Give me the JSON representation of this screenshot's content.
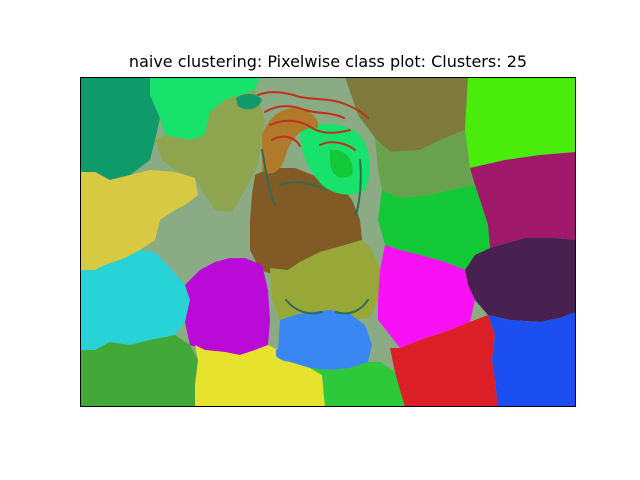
{
  "chart_data": {
    "type": "heatmap",
    "title": "naive clustering: Pixelwise class plot: Clusters: 25",
    "xlabel": "",
    "ylabel": "",
    "num_clusters": 25,
    "axis_ticks": "off",
    "grid": false,
    "legend": "none",
    "regions": [
      {
        "cluster": 1,
        "color": "#0f9a6c",
        "location": "top-left"
      },
      {
        "cluster": 2,
        "color": "#17e26b",
        "location": "top-center-left"
      },
      {
        "cluster": 3,
        "color": "#8fa44f",
        "location": "top-center"
      },
      {
        "cluster": 4,
        "color": "#7e7a3e",
        "location": "top-center-right"
      },
      {
        "cluster": 5,
        "color": "#49ec0b",
        "location": "top-right"
      },
      {
        "cluster": 6,
        "color": "#6aa14f",
        "location": "upper-center-right"
      },
      {
        "cluster": 7,
        "color": "#a0186a",
        "location": "right"
      },
      {
        "cluster": 8,
        "color": "#d8c942",
        "location": "left"
      },
      {
        "cluster": 9,
        "color": "#8aab83",
        "location": "center-left"
      },
      {
        "cluster": 10,
        "color": "#815a25",
        "location": "center"
      },
      {
        "cluster": 11,
        "color": "#13c837",
        "location": "center-right"
      },
      {
        "cluster": 12,
        "color": "#482150",
        "location": "lower-right"
      },
      {
        "cluster": 13,
        "color": "#27d3d6",
        "location": "lower-left"
      },
      {
        "cluster": 14,
        "color": "#b90ad7",
        "location": "lower-center-left"
      },
      {
        "cluster": 15,
        "color": "#98a838",
        "location": "lower-center"
      },
      {
        "cluster": 16,
        "color": "#f711f4",
        "location": "lower-center-right"
      },
      {
        "cluster": 17,
        "color": "#3a86f2",
        "location": "bottom-center"
      },
      {
        "cluster": 18,
        "color": "#43a83a",
        "location": "bottom-left"
      },
      {
        "cluster": 19,
        "color": "#e7e22e",
        "location": "bottom-center-left"
      },
      {
        "cluster": 20,
        "color": "#2dc93a",
        "location": "bottom-center"
      },
      {
        "cluster": 21,
        "color": "#dc1e27",
        "location": "bottom-center-right"
      },
      {
        "cluster": 22,
        "color": "#1b4ff2",
        "location": "bottom-right"
      },
      {
        "cluster": 23,
        "color": "#c0311c",
        "location": "top-center-edges"
      },
      {
        "cluster": 24,
        "color": "#b07a2a",
        "location": "center-edges"
      },
      {
        "cluster": 25,
        "color": "#2f6e52",
        "location": "center-edges"
      }
    ]
  }
}
